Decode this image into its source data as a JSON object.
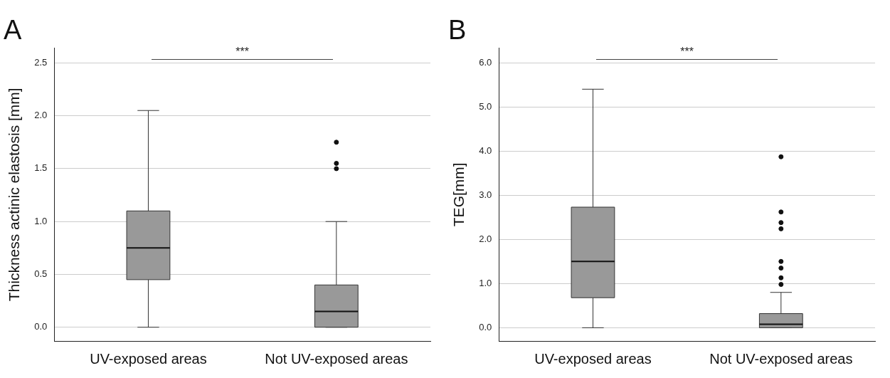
{
  "chart_data": [
    {
      "type": "box",
      "title": "A",
      "ylabel": "Thickness actinic elastosis [mm]",
      "categories": [
        "UV-exposed areas",
        "Not UV-exposed areas"
      ],
      "color": "#999999",
      "boxes": [
        {
          "low": 0,
          "q1": 0.45,
          "median": 0.75,
          "q3": 1.1,
          "high": 2.05
        },
        {
          "low": 0,
          "q1": 0,
          "median": 0.15,
          "q3": 0.4,
          "high": 1.0,
          "outliers": [
            1.75,
            1.55,
            1.5
          ]
        }
      ],
      "ylim": [
        -0.13,
        2.64
      ],
      "yticks": [
        {
          "value": 0,
          "label": "0.0"
        },
        {
          "value": 0.5,
          "label": "0.5"
        },
        {
          "value": 1,
          "label": "1.0"
        },
        {
          "value": 1.5,
          "label": "1.5"
        },
        {
          "value": 2,
          "label": "2.0"
        },
        {
          "value": 2.5,
          "label": "2.5"
        }
      ],
      "grid": "y",
      "annotations": [
        "***"
      ]
    },
    {
      "type": "box",
      "title": "B",
      "ylabel": "TEG[mm]",
      "categories": [
        "UV-exposed areas",
        "Not UV-exposed areas"
      ],
      "color": "#999999",
      "boxes": [
        {
          "low": 0,
          "q1": 0.68,
          "median": 1.5,
          "q3": 2.73,
          "high": 5.4
        },
        {
          "low": 0,
          "q1": 0,
          "median": 0.08,
          "q3": 0.32,
          "high": 0.8,
          "outliers": [
            3.87,
            2.62,
            2.38,
            2.24,
            1.5,
            1.35,
            1.13,
            0.98
          ]
        }
      ],
      "ylim": [
        -0.3,
        6.33
      ],
      "yticks": [
        {
          "value": 0,
          "label": "0.0"
        },
        {
          "value": 1,
          "label": "1.0"
        },
        {
          "value": 2,
          "label": "2.0"
        },
        {
          "value": 3,
          "label": "3.0"
        },
        {
          "value": 4,
          "label": "4.0"
        },
        {
          "value": 5,
          "label": "5.0"
        },
        {
          "value": 6,
          "label": "6.0"
        }
      ],
      "grid": "y",
      "annotations": [
        "***"
      ]
    }
  ]
}
